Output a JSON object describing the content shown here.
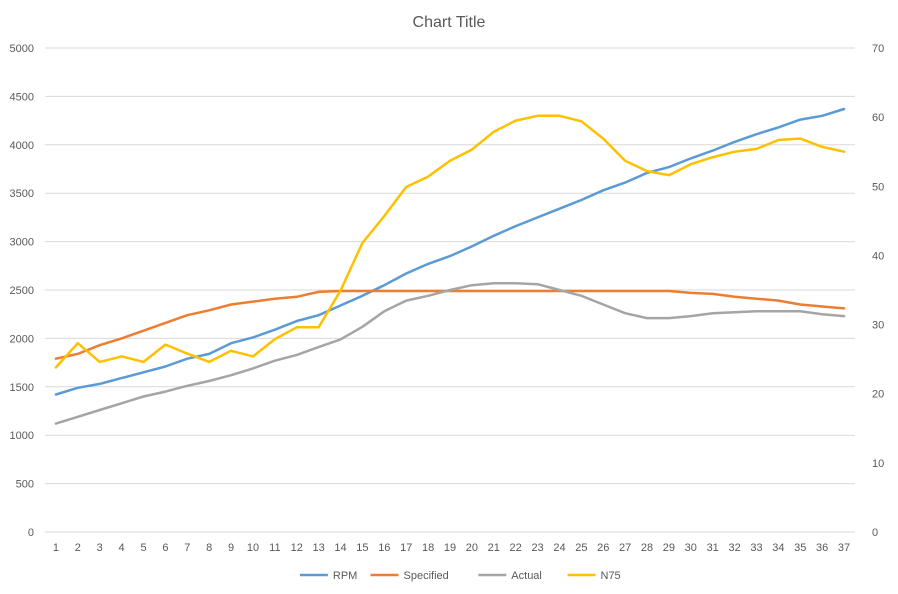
{
  "chart_data": {
    "type": "line",
    "title": "Chart Title",
    "xlabel": "",
    "ylabel": "",
    "categories": [
      "1",
      "2",
      "3",
      "4",
      "5",
      "6",
      "7",
      "8",
      "9",
      "10",
      "11",
      "12",
      "13",
      "14",
      "15",
      "16",
      "17",
      "18",
      "19",
      "20",
      "21",
      "22",
      "23",
      "24",
      "25",
      "26",
      "27",
      "28",
      "29",
      "30",
      "31",
      "32",
      "33",
      "34",
      "35",
      "36",
      "37"
    ],
    "y_left": {
      "min": 0,
      "max": 5000,
      "step": 500,
      "ticks": [
        "0",
        "500",
        "1000",
        "1500",
        "2000",
        "2500",
        "3000",
        "3500",
        "4000",
        "4500",
        "5000"
      ]
    },
    "y_right": {
      "min": 0,
      "max": 70,
      "step": 10,
      "ticks": [
        "0",
        "10",
        "20",
        "30",
        "40",
        "50",
        "60",
        "70"
      ]
    },
    "grid": true,
    "legend_position": "bottom",
    "series": [
      {
        "name": "RPM",
        "axis": "left",
        "color": "#5b9bd5",
        "values": [
          1420,
          1490,
          1530,
          1590,
          1650,
          1710,
          1790,
          1840,
          1950,
          2010,
          2090,
          2180,
          2240,
          2340,
          2440,
          2550,
          2670,
          2770,
          2850,
          2950,
          3060,
          3160,
          3250,
          3340,
          3430,
          3530,
          3610,
          3710,
          3770,
          3860,
          3940,
          4030,
          4110,
          4180,
          4260,
          4300,
          4370
        ]
      },
      {
        "name": "Specified",
        "axis": "left",
        "color": "#ed7d31",
        "values": [
          1790,
          1840,
          1930,
          2000,
          2080,
          2160,
          2240,
          2290,
          2350,
          2380,
          2410,
          2430,
          2480,
          2490,
          2490,
          2490,
          2490,
          2490,
          2490,
          2490,
          2490,
          2490,
          2490,
          2490,
          2490,
          2490,
          2490,
          2490,
          2490,
          2470,
          2460,
          2430,
          2410,
          2390,
          2350,
          2330,
          2310
        ]
      },
      {
        "name": "Actual",
        "axis": "left",
        "color": "#a5a5a5",
        "values": [
          1120,
          1190,
          1260,
          1330,
          1400,
          1450,
          1510,
          1560,
          1620,
          1690,
          1770,
          1830,
          1910,
          1990,
          2120,
          2280,
          2390,
          2440,
          2500,
          2550,
          2570,
          2570,
          2560,
          2500,
          2440,
          2350,
          2260,
          2210,
          2210,
          2230,
          2260,
          2270,
          2280,
          2280,
          2280,
          2250,
          2230
        ]
      },
      {
        "name": "N75",
        "axis": "right",
        "color": "#ffc000",
        "values": [
          23.8,
          27.3,
          24.6,
          25.4,
          24.6,
          27.1,
          25.8,
          24.6,
          26.2,
          25.4,
          27.9,
          29.6,
          29.6,
          34.9,
          41.8,
          45.7,
          49.9,
          51.4,
          53.7,
          55.3,
          57.9,
          59.5,
          60.2,
          60.2,
          59.4,
          56.9,
          53.7,
          52.2,
          51.6,
          53.2,
          54.2,
          55.0,
          55.4,
          56.7,
          56.9,
          55.7,
          55.0
        ]
      }
    ]
  }
}
